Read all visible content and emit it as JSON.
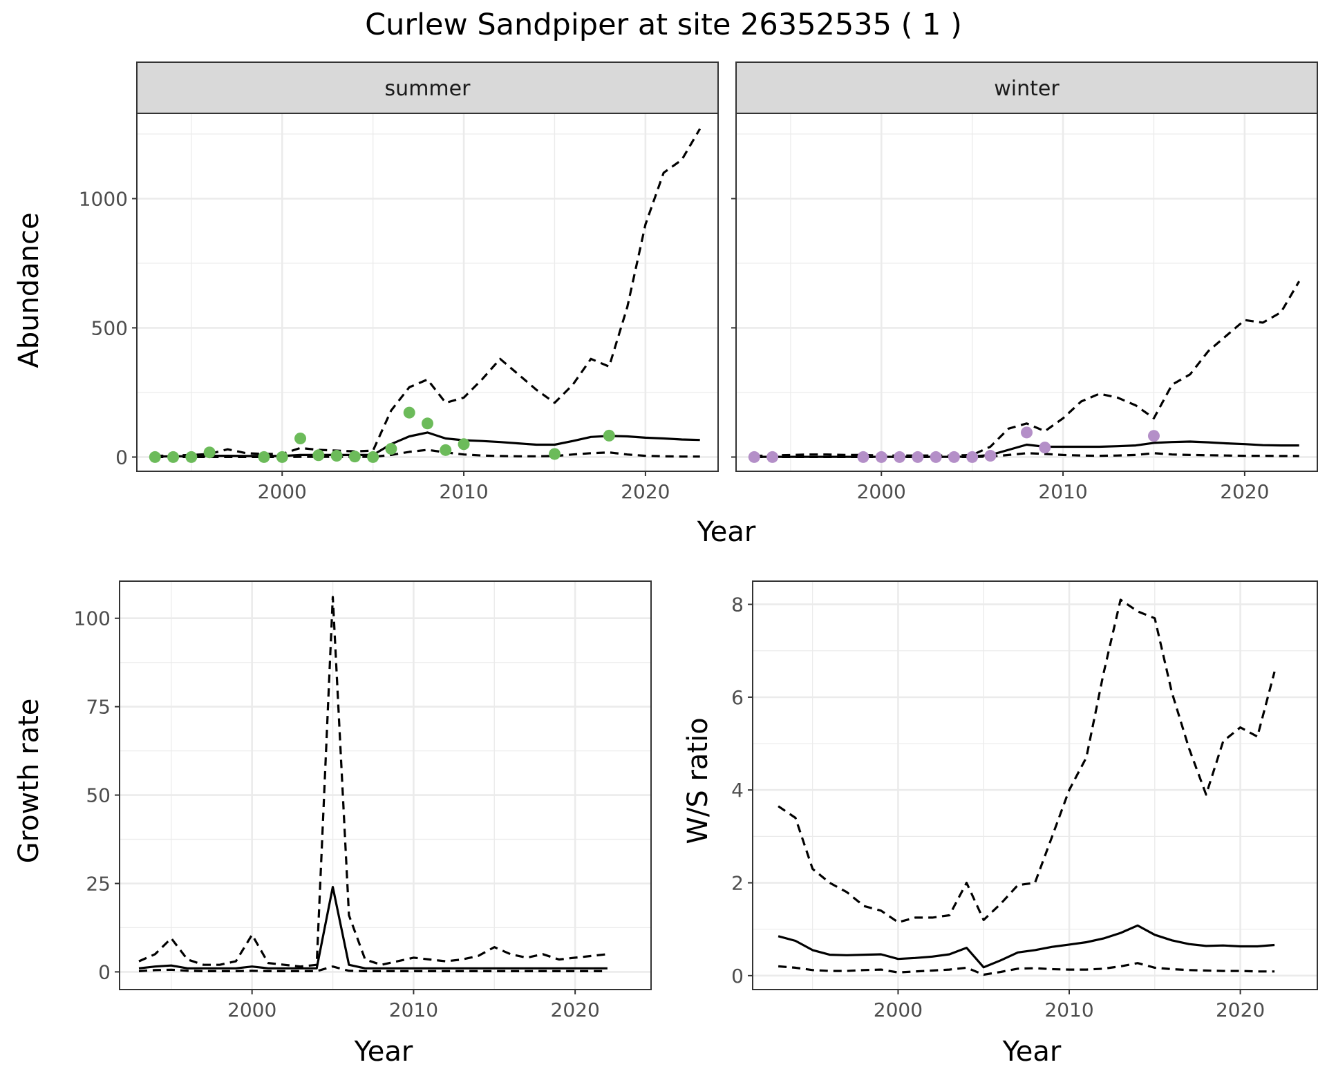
{
  "title": "Curlew Sandpiper at site 26352535 ( 1 )",
  "colors": {
    "summer_points": "#6cbb5a",
    "winter_points": "#b48fc8",
    "line": "#000000",
    "strip_bg": "#d9d9d9",
    "grid": "#ebebeb"
  },
  "chart_data": [
    {
      "id": "summer",
      "type": "line",
      "strip_label": "summer",
      "xlabel": "Year",
      "ylabel": "Abundance",
      "xlim": [
        1992,
        2024
      ],
      "ylim": [
        -55,
        1330
      ],
      "xticks": [
        2000,
        2010,
        2020
      ],
      "xtick_labels": [
        "2000",
        "2010",
        "2020"
      ],
      "yticks": [
        0,
        500,
        1000
      ],
      "ytick_labels": [
        "0",
        "500",
        "1000"
      ],
      "series": [
        {
          "name": "estimate",
          "style": "solid",
          "x": [
            1993,
            1994,
            1995,
            1996,
            1997,
            1998,
            1999,
            2000,
            2001,
            2002,
            2003,
            2004,
            2005,
            2006,
            2007,
            2008,
            2009,
            2010,
            2011,
            2012,
            2013,
            2014,
            2015,
            2016,
            2017,
            2018,
            2019,
            2020,
            2021,
            2022,
            2023
          ],
          "y": [
            2,
            3,
            3,
            5,
            5,
            4,
            4,
            4,
            8,
            8,
            8,
            8,
            8,
            50,
            80,
            95,
            72,
            65,
            62,
            58,
            53,
            48,
            48,
            62,
            78,
            82,
            80,
            75,
            72,
            68,
            66
          ]
        },
        {
          "name": "upper",
          "style": "dashed",
          "x": [
            1993,
            1994,
            1995,
            1996,
            1997,
            1998,
            1999,
            2000,
            2001,
            2002,
            2003,
            2004,
            2005,
            2006,
            2007,
            2008,
            2009,
            2010,
            2011,
            2012,
            2013,
            2014,
            2015,
            2016,
            2017,
            2018,
            2019,
            2020,
            2021,
            2022,
            2023
          ],
          "y": [
            5,
            6,
            8,
            12,
            30,
            15,
            12,
            12,
            35,
            28,
            25,
            22,
            25,
            180,
            270,
            300,
            210,
            230,
            300,
            380,
            320,
            260,
            210,
            280,
            380,
            350,
            580,
            900,
            1100,
            1150,
            1270
          ]
        },
        {
          "name": "lower",
          "style": "dashed",
          "x": [
            1993,
            1994,
            1995,
            1996,
            1997,
            1998,
            1999,
            2000,
            2001,
            2002,
            2003,
            2004,
            2005,
            2006,
            2007,
            2008,
            2009,
            2010,
            2011,
            2012,
            2013,
            2014,
            2015,
            2016,
            2017,
            2018,
            2019,
            2020,
            2021,
            2022,
            2023
          ],
          "y": [
            0,
            0,
            0,
            0,
            0,
            0,
            0,
            0,
            1,
            1,
            1,
            1,
            1,
            8,
            20,
            28,
            18,
            10,
            6,
            4,
            3,
            3,
            4,
            10,
            15,
            18,
            10,
            5,
            3,
            2,
            2
          ]
        }
      ],
      "points": {
        "x": [
          1993,
          1994,
          1995,
          1996,
          1999,
          2000,
          2001,
          2002,
          2003,
          2004,
          2005,
          2006,
          2007,
          2008,
          2009,
          2010,
          2015,
          2018
        ],
        "y": [
          0,
          0,
          0,
          18,
          0,
          0,
          72,
          7,
          5,
          2,
          0,
          32,
          172,
          130,
          27,
          50,
          12,
          83
        ]
      }
    },
    {
      "id": "winter",
      "type": "line",
      "strip_label": "winter",
      "xlabel": "Year",
      "ylabel": "",
      "xlim": [
        1992,
        2024
      ],
      "ylim": [
        -55,
        1330
      ],
      "xticks": [
        2000,
        2010,
        2020
      ],
      "xtick_labels": [
        "2000",
        "2010",
        "2020"
      ],
      "yticks": [
        0,
        500,
        1000
      ],
      "series": [
        {
          "name": "estimate",
          "style": "solid",
          "x": [
            1993,
            1994,
            1995,
            1996,
            1997,
            1998,
            1999,
            2000,
            2001,
            2002,
            2003,
            2004,
            2005,
            2006,
            2007,
            2008,
            2009,
            2010,
            2011,
            2012,
            2013,
            2014,
            2015,
            2016,
            2017,
            2018,
            2019,
            2020,
            2021,
            2022,
            2023
          ],
          "y": [
            1,
            1,
            1,
            1,
            1,
            1,
            1,
            1,
            1,
            1,
            1,
            1,
            2,
            8,
            28,
            48,
            40,
            40,
            40,
            40,
            42,
            45,
            55,
            58,
            60,
            57,
            53,
            50,
            46,
            45,
            45
          ]
        },
        {
          "name": "upper",
          "style": "dashed",
          "x": [
            1993,
            1994,
            1995,
            1996,
            1997,
            1998,
            1999,
            2000,
            2001,
            2002,
            2003,
            2004,
            2005,
            2006,
            2007,
            2008,
            2009,
            2010,
            2011,
            2012,
            2013,
            2014,
            2015,
            2016,
            2017,
            2018,
            2019,
            2020,
            2021,
            2022,
            2023
          ],
          "y": [
            5,
            6,
            8,
            10,
            10,
            8,
            8,
            6,
            6,
            6,
            6,
            6,
            8,
            40,
            110,
            130,
            100,
            150,
            215,
            245,
            230,
            200,
            150,
            280,
            320,
            410,
            470,
            530,
            520,
            560,
            680
          ]
        },
        {
          "name": "lower",
          "style": "dashed",
          "x": [
            1993,
            1994,
            1995,
            1996,
            1997,
            1998,
            1999,
            2000,
            2001,
            2002,
            2003,
            2004,
            2005,
            2006,
            2007,
            2008,
            2009,
            2010,
            2011,
            2012,
            2013,
            2014,
            2015,
            2016,
            2017,
            2018,
            2019,
            2020,
            2021,
            2022,
            2023
          ],
          "y": [
            0,
            0,
            0,
            0,
            0,
            0,
            0,
            0,
            0,
            0,
            0,
            0,
            0,
            2,
            8,
            15,
            12,
            8,
            6,
            5,
            6,
            8,
            15,
            10,
            8,
            7,
            6,
            5,
            5,
            4,
            4
          ]
        }
      ],
      "points": {
        "x": [
          1993,
          1994,
          1999,
          2000,
          2001,
          2002,
          2003,
          2004,
          2005,
          2006,
          2008,
          2009,
          2015
        ],
        "y": [
          0,
          0,
          0,
          0,
          0,
          0,
          0,
          0,
          0,
          5,
          95,
          37,
          82
        ]
      }
    },
    {
      "id": "growth",
      "type": "line",
      "xlabel": "Year",
      "ylabel": "Growth rate",
      "xlim": [
        1991.8,
        2024.7
      ],
      "ylim": [
        -5,
        110.5
      ],
      "xticks": [
        2000,
        2010,
        2020
      ],
      "xtick_labels": [
        "2000",
        "2010",
        "2020"
      ],
      "yticks": [
        0,
        25,
        50,
        75,
        100
      ],
      "ytick_labels": [
        "0",
        "25",
        "50",
        "75",
        "100"
      ],
      "series": [
        {
          "name": "estimate",
          "style": "solid",
          "x": [
            1993,
            1994,
            1995,
            1996,
            1997,
            1998,
            1999,
            2000,
            2001,
            2002,
            2003,
            2004,
            2005,
            2006,
            2007,
            2008,
            2009,
            2010,
            2011,
            2012,
            2013,
            2014,
            2015,
            2016,
            2017,
            2018,
            2019,
            2020,
            2021,
            2022
          ],
          "y": [
            1,
            1.5,
            1.8,
            1,
            1,
            1,
            1,
            1.5,
            1,
            1,
            1,
            1,
            24,
            2,
            1,
            1,
            1,
            1,
            1,
            1,
            1,
            1,
            1,
            1,
            1,
            1,
            1,
            1,
            1,
            1
          ]
        },
        {
          "name": "upper",
          "style": "dashed",
          "x": [
            1993,
            1994,
            1995,
            1996,
            1997,
            1998,
            1999,
            2000,
            2001,
            2002,
            2003,
            2004,
            2005,
            2006,
            2007,
            2008,
            2009,
            2010,
            2011,
            2012,
            2013,
            2014,
            2015,
            2016,
            2017,
            2018,
            2019,
            2020,
            2021,
            2022
          ],
          "y": [
            3,
            5,
            9.5,
            3.5,
            2,
            2,
            3,
            10.5,
            2.5,
            2,
            1.5,
            2,
            106,
            16,
            3.5,
            2,
            3,
            4,
            3.5,
            3,
            3.5,
            4.5,
            7,
            5,
            4,
            5,
            3.5,
            4,
            4.5,
            5
          ]
        },
        {
          "name": "lower",
          "style": "dashed",
          "x": [
            1993,
            1994,
            1995,
            1996,
            1997,
            1998,
            1999,
            2000,
            2001,
            2002,
            2003,
            2004,
            2005,
            2006,
            2007,
            2008,
            2009,
            2010,
            2011,
            2012,
            2013,
            2014,
            2015,
            2016,
            2017,
            2018,
            2019,
            2020,
            2021,
            2022
          ],
          "y": [
            0.2,
            0.5,
            0.6,
            0.3,
            0.2,
            0.2,
            0.2,
            0.3,
            0.2,
            0.2,
            0.2,
            0.2,
            1.5,
            0.3,
            0.2,
            0.2,
            0.2,
            0.2,
            0.2,
            0.2,
            0.2,
            0.2,
            0.2,
            0.2,
            0.2,
            0.2,
            0.2,
            0.2,
            0.2,
            0.2
          ]
        }
      ]
    },
    {
      "id": "ratio",
      "type": "line",
      "xlabel": "Year",
      "ylabel": "W/S ratio",
      "xlim": [
        1991.5,
        2024.5
      ],
      "ylim": [
        -0.3,
        8.5
      ],
      "xticks": [
        2000,
        2010,
        2020
      ],
      "xtick_labels": [
        "2000",
        "2010",
        "2020"
      ],
      "yticks": [
        0,
        2,
        4,
        6,
        8
      ],
      "ytick_labels": [
        "0",
        "2",
        "4",
        "6",
        "8"
      ],
      "series": [
        {
          "name": "estimate",
          "style": "solid",
          "x": [
            1993,
            1994,
            1995,
            1996,
            1997,
            1998,
            1999,
            2000,
            2001,
            2002,
            2003,
            2004,
            2005,
            2006,
            2007,
            2008,
            2009,
            2010,
            2011,
            2012,
            2013,
            2014,
            2015,
            2016,
            2017,
            2018,
            2019,
            2020,
            2021,
            2022
          ],
          "y": [
            0.85,
            0.75,
            0.55,
            0.45,
            0.44,
            0.45,
            0.46,
            0.36,
            0.38,
            0.41,
            0.46,
            0.6,
            0.18,
            0.33,
            0.5,
            0.55,
            0.62,
            0.67,
            0.72,
            0.8,
            0.92,
            1.08,
            0.88,
            0.76,
            0.68,
            0.64,
            0.65,
            0.63,
            0.63,
            0.66
          ]
        },
        {
          "name": "upper",
          "style": "dashed",
          "x": [
            1993,
            1994,
            1995,
            1996,
            1997,
            1998,
            1999,
            2000,
            2001,
            2002,
            2003,
            2004,
            2005,
            2006,
            2007,
            2008,
            2009,
            2010,
            2011,
            2012,
            2013,
            2014,
            2015,
            2016,
            2017,
            2018,
            2019,
            2020,
            2021,
            2022
          ],
          "y": [
            3.65,
            3.4,
            2.3,
            2.0,
            1.8,
            1.5,
            1.4,
            1.15,
            1.25,
            1.25,
            1.3,
            2.0,
            1.2,
            1.55,
            1.95,
            2.0,
            3.0,
            4.0,
            4.7,
            6.5,
            8.1,
            7.85,
            7.7,
            6.1,
            4.9,
            3.9,
            5.05,
            5.35,
            5.15,
            6.55
          ]
        },
        {
          "name": "lower",
          "style": "dashed",
          "x": [
            1993,
            1994,
            1995,
            1996,
            1997,
            1998,
            1999,
            2000,
            2001,
            2002,
            2003,
            2004,
            2005,
            2006,
            2007,
            2008,
            2009,
            2010,
            2011,
            2012,
            2013,
            2014,
            2015,
            2016,
            2017,
            2018,
            2019,
            2020,
            2021,
            2022
          ],
          "y": [
            0.2,
            0.17,
            0.12,
            0.1,
            0.1,
            0.12,
            0.13,
            0.07,
            0.09,
            0.11,
            0.13,
            0.17,
            0.02,
            0.08,
            0.15,
            0.16,
            0.14,
            0.13,
            0.13,
            0.15,
            0.2,
            0.27,
            0.17,
            0.14,
            0.12,
            0.11,
            0.1,
            0.1,
            0.09,
            0.09
          ]
        }
      ]
    }
  ]
}
